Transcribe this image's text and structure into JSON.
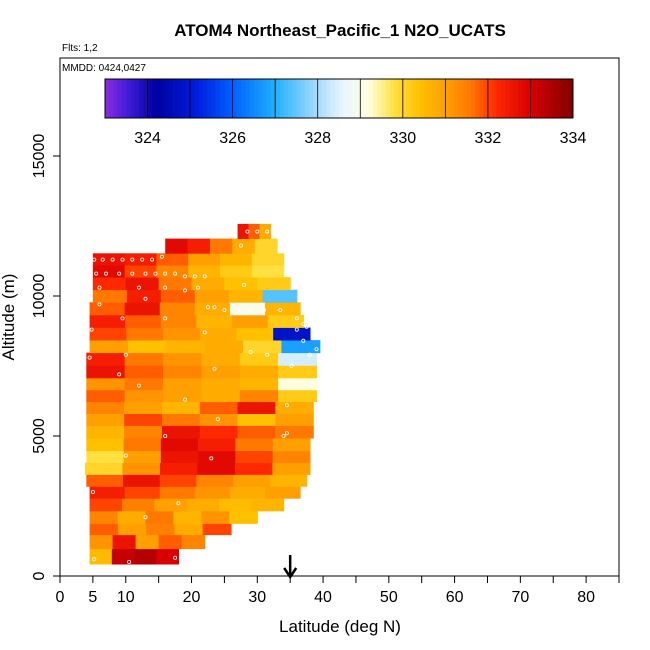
{
  "chart_data": {
    "type": "heatmap",
    "title": "ATOM4 Northeast_Pacific_1 N2O_UCATS",
    "flights_label": "Flts: 1,2",
    "dates_label": "MMDD: 0424,0427",
    "xlabel": "Latitude (deg N)",
    "ylabel": "Altitude (m)",
    "xlim": [
      0,
      85
    ],
    "ylim": [
      0,
      18500
    ],
    "x_ticks": [
      0,
      5,
      10,
      20,
      30,
      40,
      50,
      60,
      70,
      80
    ],
    "x_tick_labels": [
      "0",
      "5",
      "10",
      "20",
      "30",
      "40",
      "50",
      "60",
      "70",
      "80"
    ],
    "x_minor_ticks": [
      15,
      25,
      35,
      45,
      55,
      65,
      75,
      85
    ],
    "y_ticks": [
      0,
      5000,
      10000,
      15000
    ],
    "y_tick_labels": [
      "0",
      "5000",
      "10000",
      "15000"
    ],
    "marker_latitude": 35,
    "colorbar": {
      "min": 323,
      "max": 334,
      "ticks": [
        324,
        326,
        328,
        330,
        332,
        334
      ],
      "tick_labels": [
        "324",
        "326",
        "328",
        "330",
        "332",
        "334"
      ],
      "stops": [
        {
          "v": 323.0,
          "c": "#8a2be2"
        },
        {
          "v": 323.6,
          "c": "#3a1ad6"
        },
        {
          "v": 324.2,
          "c": "#0000a0"
        },
        {
          "v": 325.2,
          "c": "#0020e0"
        },
        {
          "v": 326.0,
          "c": "#0060ff"
        },
        {
          "v": 327.0,
          "c": "#20b0ff"
        },
        {
          "v": 328.0,
          "c": "#a8dcff"
        },
        {
          "v": 328.6,
          "c": "#eaf6ff"
        },
        {
          "v": 329.2,
          "c": "#ffffe0"
        },
        {
          "v": 329.8,
          "c": "#ffe040"
        },
        {
          "v": 330.4,
          "c": "#ffc000"
        },
        {
          "v": 331.0,
          "c": "#ffa000"
        },
        {
          "v": 331.6,
          "c": "#ff7800"
        },
        {
          "v": 332.2,
          "c": "#ff2800"
        },
        {
          "v": 333.0,
          "c": "#d80000"
        },
        {
          "v": 334.0,
          "c": "#800000"
        }
      ]
    },
    "rows": [
      {
        "alt": 650,
        "lat": [
          4.5,
          18
        ],
        "n2o": [
          330.5,
          333.2,
          333.4,
          333.0
        ]
      },
      {
        "alt": 1300,
        "lat": [
          4.5,
          22
        ],
        "n2o": [
          331.2,
          332.6,
          331.0,
          331.8,
          331.4
        ]
      },
      {
        "alt": 1650,
        "lat": [
          4.5,
          26
        ],
        "n2o": [
          331.8,
          331.0,
          331.5,
          330.8,
          332.0
        ]
      },
      {
        "alt": 2100,
        "lat": [
          4.5,
          30
        ],
        "n2o": [
          331.4,
          330.8,
          331.6,
          330.6,
          331.2,
          330.4
        ]
      },
      {
        "alt": 2550,
        "lat": [
          4.5,
          34
        ],
        "n2o": [
          332.0,
          331.5,
          331.0,
          330.8,
          330.5,
          330.6
        ]
      },
      {
        "alt": 3000,
        "lat": [
          4.5,
          36.5
        ],
        "n2o": [
          332.4,
          332.0,
          331.6,
          331.2,
          330.8,
          331.0
        ]
      },
      {
        "alt": 3400,
        "lat": [
          4.0,
          37.5
        ],
        "n2o": [
          331.8,
          332.6,
          332.0,
          331.4,
          331.0,
          330.6
        ]
      },
      {
        "alt": 3850,
        "lat": [
          3.8,
          38
        ],
        "n2o": [
          330.0,
          331.2,
          332.4,
          332.8,
          332.2,
          331.0
        ]
      },
      {
        "alt": 4250,
        "lat": [
          4.0,
          38
        ],
        "n2o": [
          329.8,
          331.0,
          332.6,
          332.8,
          332.0,
          331.4
        ]
      },
      {
        "alt": 4700,
        "lat": [
          4.0,
          38
        ],
        "n2o": [
          330.4,
          331.6,
          332.8,
          332.4,
          331.6,
          331.0
        ]
      },
      {
        "alt": 5150,
        "lat": [
          4.0,
          38.5
        ],
        "n2o": [
          330.6,
          331.4,
          332.6,
          332.2,
          331.8,
          331.6
        ]
      },
      {
        "alt": 5600,
        "lat": [
          4.0,
          38.5
        ],
        "n2o": [
          331.0,
          332.0,
          331.6,
          331.2,
          330.4,
          331.0
        ]
      },
      {
        "alt": 6000,
        "lat": [
          4.0,
          38.5
        ],
        "n2o": [
          331.4,
          331.0,
          330.6,
          331.8,
          332.6,
          330.8
        ]
      },
      {
        "alt": 6450,
        "lat": [
          4.0,
          39
        ],
        "n2o": [
          331.8,
          331.2,
          331.0,
          330.8,
          331.4,
          330.2
        ]
      },
      {
        "alt": 6850,
        "lat": [
          4.0,
          39
        ],
        "n2o": [
          331.2,
          331.6,
          331.0,
          330.8,
          330.6,
          329.2
        ]
      },
      {
        "alt": 7300,
        "lat": [
          4.0,
          39
        ],
        "n2o": [
          332.6,
          331.8,
          331.4,
          331.0,
          330.8,
          330.2
        ]
      },
      {
        "alt": 7750,
        "lat": [
          4.0,
          39
        ],
        "n2o": [
          332.4,
          331.6,
          331.2,
          330.8,
          330.2,
          328.4
        ]
      },
      {
        "alt": 8200,
        "lat": [
          4.5,
          39.5
        ],
        "n2o": [
          331.0,
          330.4,
          330.6,
          330.8,
          330.0,
          326.8
        ]
      },
      {
        "alt": 8650,
        "lat": [
          4.5,
          38
        ],
        "n2o": [
          332.0,
          331.6,
          331.2,
          330.8,
          330.4,
          324.8
        ]
      },
      {
        "alt": 9100,
        "lat": [
          4.5,
          37
        ],
        "n2o": [
          332.4,
          331.8,
          331.4,
          330.6,
          331.0,
          330.2
        ]
      },
      {
        "alt": 9550,
        "lat": [
          4.5,
          36.5
        ],
        "n2o": [
          331.8,
          332.6,
          331.4,
          330.8,
          329.0,
          330.6
        ]
      },
      {
        "alt": 10000,
        "lat": [
          5.0,
          36
        ],
        "n2o": [
          331.6,
          332.4,
          331.8,
          331.0,
          330.6,
          327.4
        ]
      },
      {
        "alt": 10450,
        "lat": [
          5.0,
          35
        ],
        "n2o": [
          332.2,
          332.6,
          331.6,
          330.8,
          330.4,
          330.2
        ]
      },
      {
        "alt": 10900,
        "lat": [
          5.0,
          34
        ],
        "n2o": [
          332.8,
          332.0,
          331.4,
          330.6,
          330.2,
          329.8
        ]
      },
      {
        "alt": 11300,
        "lat": [
          5.0,
          34
        ],
        "n2o": [
          332.6,
          332.4,
          331.8,
          331.0,
          330.6,
          330.0
        ]
      },
      {
        "alt": 11750,
        "lat": [
          16.0,
          33
        ],
        "n2o": [
          332.8,
          332.4,
          331.6,
          330.8,
          330.0
        ]
      },
      {
        "alt": 12350,
        "lat": [
          27.0,
          32
        ],
        "n2o": [
          332.6,
          331.8,
          330.8
        ]
      }
    ],
    "sample_points": [
      [
        5.2,
        600
      ],
      [
        10.5,
        500
      ],
      [
        17.5,
        650
      ],
      [
        5.0,
        3000
      ],
      [
        13.0,
        2100
      ],
      [
        18.0,
        2600
      ],
      [
        30.0,
        1800
      ],
      [
        10.0,
        4300
      ],
      [
        16.0,
        5000
      ],
      [
        23.0,
        4200
      ],
      [
        34.0,
        5000
      ],
      [
        34.5,
        5100
      ],
      [
        24.0,
        5600
      ],
      [
        12.0,
        6800
      ],
      [
        19.0,
        6300
      ],
      [
        9.0,
        7200
      ],
      [
        23.5,
        7400
      ],
      [
        34.5,
        6100
      ],
      [
        35.2,
        7500
      ],
      [
        4.5,
        7800
      ],
      [
        10.0,
        7900
      ],
      [
        29.0,
        8000
      ],
      [
        31.5,
        7900
      ],
      [
        38.0,
        7900
      ],
      [
        37.0,
        8400
      ],
      [
        39.0,
        8100
      ],
      [
        4.8,
        8800
      ],
      [
        9.5,
        9200
      ],
      [
        16.0,
        9200
      ],
      [
        22.0,
        8700
      ],
      [
        36.0,
        8800
      ],
      [
        37.5,
        8900
      ],
      [
        6.0,
        9700
      ],
      [
        13.0,
        9900
      ],
      [
        22.5,
        9600
      ],
      [
        23.5,
        9600
      ],
      [
        25.0,
        9500
      ],
      [
        27.0,
        9500
      ],
      [
        29.0,
        9500
      ],
      [
        31.0,
        9500
      ],
      [
        33.5,
        9500
      ],
      [
        36.0,
        9200
      ],
      [
        37.0,
        9000
      ],
      [
        6.0,
        10300
      ],
      [
        12.0,
        10300
      ],
      [
        16.0,
        10300
      ],
      [
        19.0,
        10200
      ],
      [
        21.0,
        10300
      ],
      [
        28.0,
        10400
      ],
      [
        5.5,
        10800
      ],
      [
        7.0,
        10800
      ],
      [
        9.0,
        10800
      ],
      [
        11.0,
        10800
      ],
      [
        13.0,
        10800
      ],
      [
        14.5,
        10800
      ],
      [
        16.0,
        10800
      ],
      [
        17.5,
        10800
      ],
      [
        19.0,
        10700
      ],
      [
        20.5,
        10700
      ],
      [
        22.0,
        10700
      ],
      [
        5.2,
        11300
      ],
      [
        6.5,
        11300
      ],
      [
        8.0,
        11300
      ],
      [
        9.5,
        11300
      ],
      [
        11.0,
        11300
      ],
      [
        12.5,
        11300
      ],
      [
        14.0,
        11300
      ],
      [
        15.5,
        11400
      ],
      [
        27.5,
        11800
      ],
      [
        28.5,
        12300
      ],
      [
        30.0,
        12300
      ],
      [
        31.5,
        12300
      ]
    ]
  }
}
